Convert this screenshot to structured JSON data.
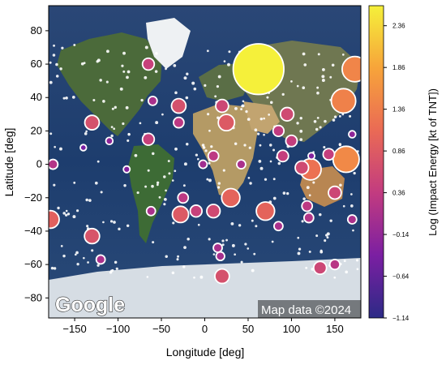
{
  "chart_data": {
    "type": "scatter",
    "xlabel": "Longitude [deg]",
    "ylabel": "Latitude [deg]",
    "xlim": [
      -180,
      180
    ],
    "ylim": [
      -92,
      95
    ],
    "x_ticks": [
      -150,
      -100,
      -50,
      0,
      50,
      100,
      150
    ],
    "y_ticks": [
      80,
      60,
      40,
      20,
      0,
      -20,
      -40,
      -60,
      -80
    ],
    "colorbar": {
      "label": "Log (Impact Energy [kt of TNT])",
      "ticks": [
        2.36,
        1.86,
        1.36,
        0.86,
        0.36,
        -0.14,
        -0.64,
        -1.14
      ],
      "range": [
        -1.14,
        2.6
      ],
      "colors": [
        "#2c2a86",
        "#7b1fa2",
        "#c23b80",
        "#ea6a55",
        "#f7a43a",
        "#f5f03a"
      ]
    },
    "basemap_credit": "Map data ©2024",
    "basemap_logo": "Google",
    "points": [
      {
        "lon": 62,
        "lat": 57,
        "energy": 2.6
      },
      {
        "lon": 173,
        "lat": 57,
        "energy": 1.45
      },
      {
        "lon": 160,
        "lat": 38,
        "energy": 1.4
      },
      {
        "lon": 163,
        "lat": 3,
        "energy": 1.5
      },
      {
        "lon": 122,
        "lat": -3,
        "energy": 1.2
      },
      {
        "lon": 30,
        "lat": -20,
        "energy": 1.0
      },
      {
        "lon": 70,
        "lat": -28,
        "energy": 1.0
      },
      {
        "lon": -178,
        "lat": -33,
        "energy": 0.95
      },
      {
        "lon": -130,
        "lat": 25,
        "energy": 0.7
      },
      {
        "lon": -130,
        "lat": -43,
        "energy": 0.75
      },
      {
        "lon": -30,
        "lat": 35,
        "energy": 0.7
      },
      {
        "lon": -28,
        "lat": -30,
        "energy": 0.85
      },
      {
        "lon": 25,
        "lat": 25,
        "energy": 0.85
      },
      {
        "lon": 20,
        "lat": 35,
        "energy": 0.55
      },
      {
        "lon": 95,
        "lat": 30,
        "energy": 0.6
      },
      {
        "lon": 20,
        "lat": -67,
        "energy": 0.7
      },
      {
        "lon": 133,
        "lat": -62,
        "energy": 0.55
      },
      {
        "lon": -65,
        "lat": 60,
        "energy": 0.45
      },
      {
        "lon": -65,
        "lat": 15,
        "energy": 0.45
      },
      {
        "lon": -10,
        "lat": -28,
        "energy": 0.45
      },
      {
        "lon": 10,
        "lat": -28,
        "energy": 0.6
      },
      {
        "lon": 150,
        "lat": -17,
        "energy": 0.55
      },
      {
        "lon": 112,
        "lat": -2,
        "energy": 0.6
      },
      {
        "lon": 100,
        "lat": 14,
        "energy": 0.4
      },
      {
        "lon": 90,
        "lat": 5,
        "energy": 0.4
      },
      {
        "lon": 85,
        "lat": 20,
        "energy": 0.35
      },
      {
        "lon": 143,
        "lat": 6,
        "energy": 0.4
      },
      {
        "lon": -30,
        "lat": 25,
        "energy": 0.3
      },
      {
        "lon": -25,
        "lat": -20,
        "energy": 0.3
      },
      {
        "lon": 10,
        "lat": 5,
        "energy": 0.3
      },
      {
        "lon": -175,
        "lat": 0,
        "energy": 0.2
      },
      {
        "lon": 150,
        "lat": -60,
        "energy": 0.25
      },
      {
        "lon": 170,
        "lat": -33,
        "energy": 0.1
      },
      {
        "lon": 118,
        "lat": -25,
        "energy": 0.3
      },
      {
        "lon": -120,
        "lat": -57,
        "energy": 0.1
      },
      {
        "lon": 15,
        "lat": -50,
        "energy": 0.1
      },
      {
        "lon": -175,
        "lat": 0,
        "energy": 0.2
      },
      {
        "lon": -62,
        "lat": -28,
        "energy": 0.1
      },
      {
        "lon": 85,
        "lat": -37,
        "energy": 0.1
      },
      {
        "lon": 120,
        "lat": -32,
        "energy": 0.2
      },
      {
        "lon": -60,
        "lat": 38,
        "energy": 0.1
      },
      {
        "lon": 18,
        "lat": -55,
        "energy": 0.05
      },
      {
        "lon": 42,
        "lat": 0,
        "energy": 0.1
      },
      {
        "lon": -2,
        "lat": 0,
        "energy": 0.0
      },
      {
        "lon": -110,
        "lat": 14,
        "energy": -0.2
      },
      {
        "lon": -90,
        "lat": -3,
        "energy": -0.3
      },
      {
        "lon": -140,
        "lat": 10,
        "energy": -0.4
      },
      {
        "lon": 123,
        "lat": 5,
        "energy": -0.3
      },
      {
        "lon": 170,
        "lat": 18,
        "energy": -0.2
      }
    ]
  }
}
